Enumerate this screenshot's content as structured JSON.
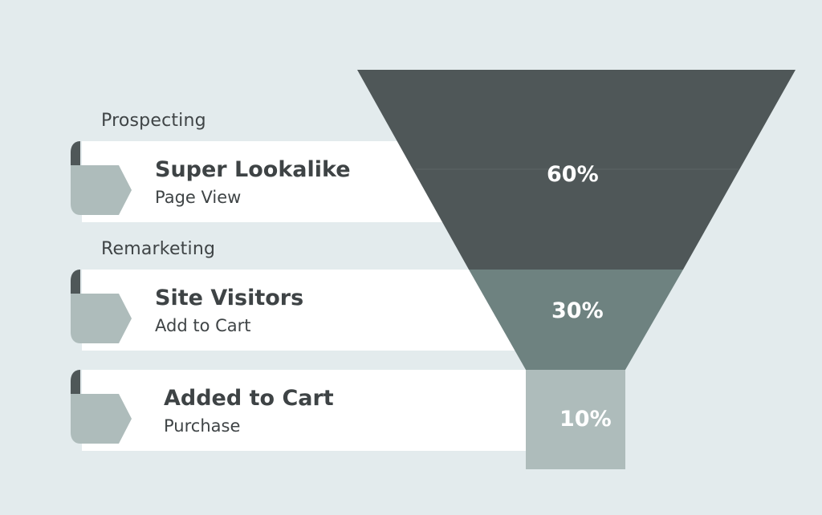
{
  "groups": {
    "prospecting": "Prospecting",
    "remarketing": "Remarketing"
  },
  "stages": [
    {
      "title": "Super Lookalike",
      "subtitle": "Page View",
      "percent": "60%",
      "value": 60,
      "color": "#4f5758"
    },
    {
      "title": "Site Visitors",
      "subtitle": "Add to Cart",
      "percent": "30%",
      "value": 30,
      "color": "#6e8280"
    },
    {
      "title": "Added to Cart",
      "subtitle": "Purchase",
      "percent": "10%",
      "value": 10,
      "color": "#aebcbb"
    }
  ],
  "colors": {
    "background": "#e3ebed",
    "card": "#ffffff",
    "tab_light": "#aebcbb",
    "tab_dark": "#4f5758"
  }
}
